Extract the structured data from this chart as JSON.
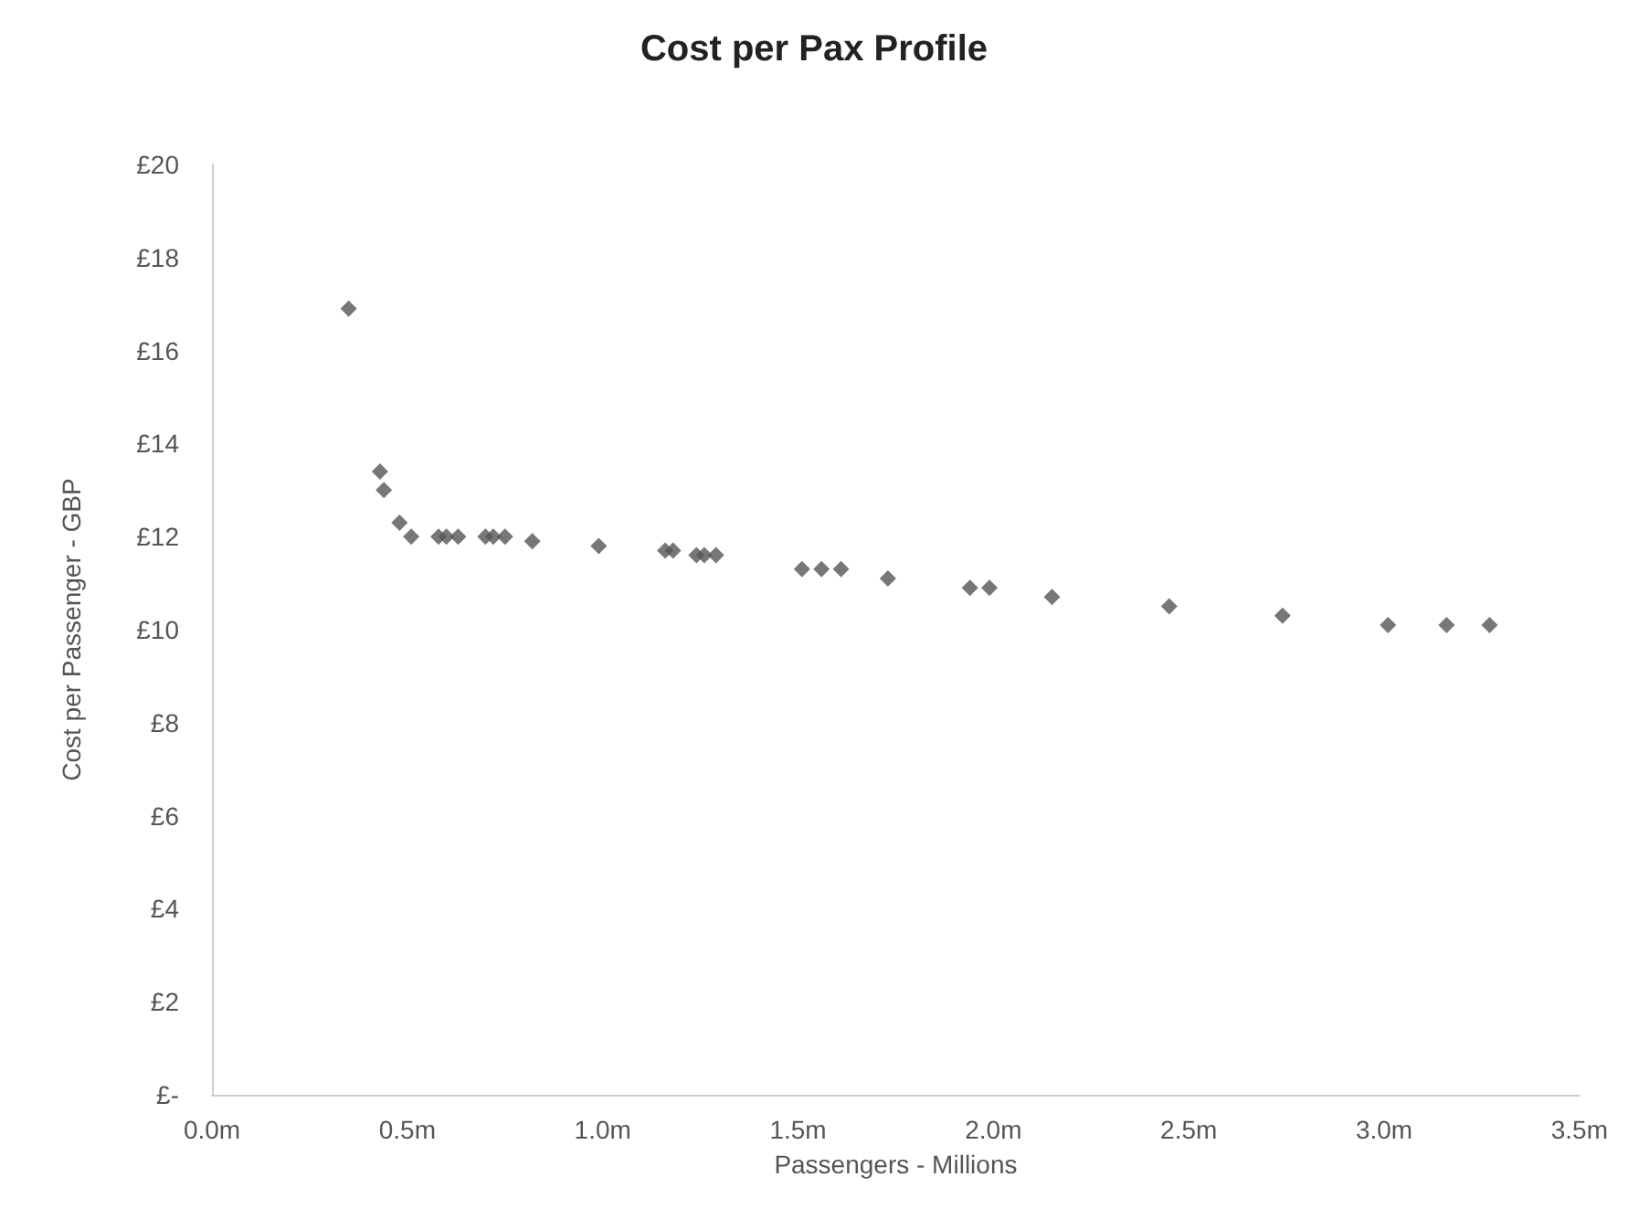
{
  "chart_data": {
    "type": "scatter",
    "title": "Cost per Pax Profile",
    "xlabel": "Passengers - Millions",
    "ylabel": "Cost per Passenger - GBP",
    "x": [
      0.35,
      0.43,
      0.44,
      0.48,
      0.51,
      0.58,
      0.6,
      0.63,
      0.7,
      0.72,
      0.75,
      0.82,
      0.99,
      1.16,
      1.18,
      1.24,
      1.26,
      1.29,
      1.51,
      1.56,
      1.61,
      1.73,
      1.94,
      1.99,
      2.15,
      2.45,
      2.74,
      3.01,
      3.16,
      3.27
    ],
    "values": [
      16.9,
      13.4,
      13.0,
      12.3,
      12.0,
      12.0,
      12.0,
      12.0,
      12.0,
      12.0,
      12.0,
      11.9,
      11.8,
      11.7,
      11.7,
      11.6,
      11.6,
      11.6,
      11.3,
      11.3,
      11.3,
      11.1,
      10.9,
      10.9,
      10.7,
      10.5,
      10.3,
      10.1,
      10.1,
      10.1
    ],
    "color": "#555555",
    "marker": "diamond",
    "grid": false,
    "xlim": [
      0,
      3.5
    ],
    "xticks": [
      {
        "value": 0,
        "label": "0.0m"
      },
      {
        "value": 0.5,
        "label": "0.5m"
      },
      {
        "value": 1,
        "label": "1.0m"
      },
      {
        "value": 1.5,
        "label": "1.5m"
      },
      {
        "value": 2,
        "label": "2.0m"
      },
      {
        "value": 2.5,
        "label": "2.5m"
      },
      {
        "value": 3,
        "label": "3.0m"
      },
      {
        "value": 3.5,
        "label": "3.5m"
      }
    ],
    "ylim": [
      0,
      20
    ],
    "yticks": [
      {
        "value": 0,
        "label": "£-"
      },
      {
        "value": 2,
        "label": "£2"
      },
      {
        "value": 4,
        "label": "£4"
      },
      {
        "value": 6,
        "label": "£6"
      },
      {
        "value": 8,
        "label": "£8"
      },
      {
        "value": 10,
        "label": "£10"
      },
      {
        "value": 12,
        "label": "£12"
      },
      {
        "value": 14,
        "label": "£14"
      },
      {
        "value": 16,
        "label": "£16"
      },
      {
        "value": 18,
        "label": "£18"
      },
      {
        "value": 20,
        "label": "£20"
      }
    ]
  }
}
